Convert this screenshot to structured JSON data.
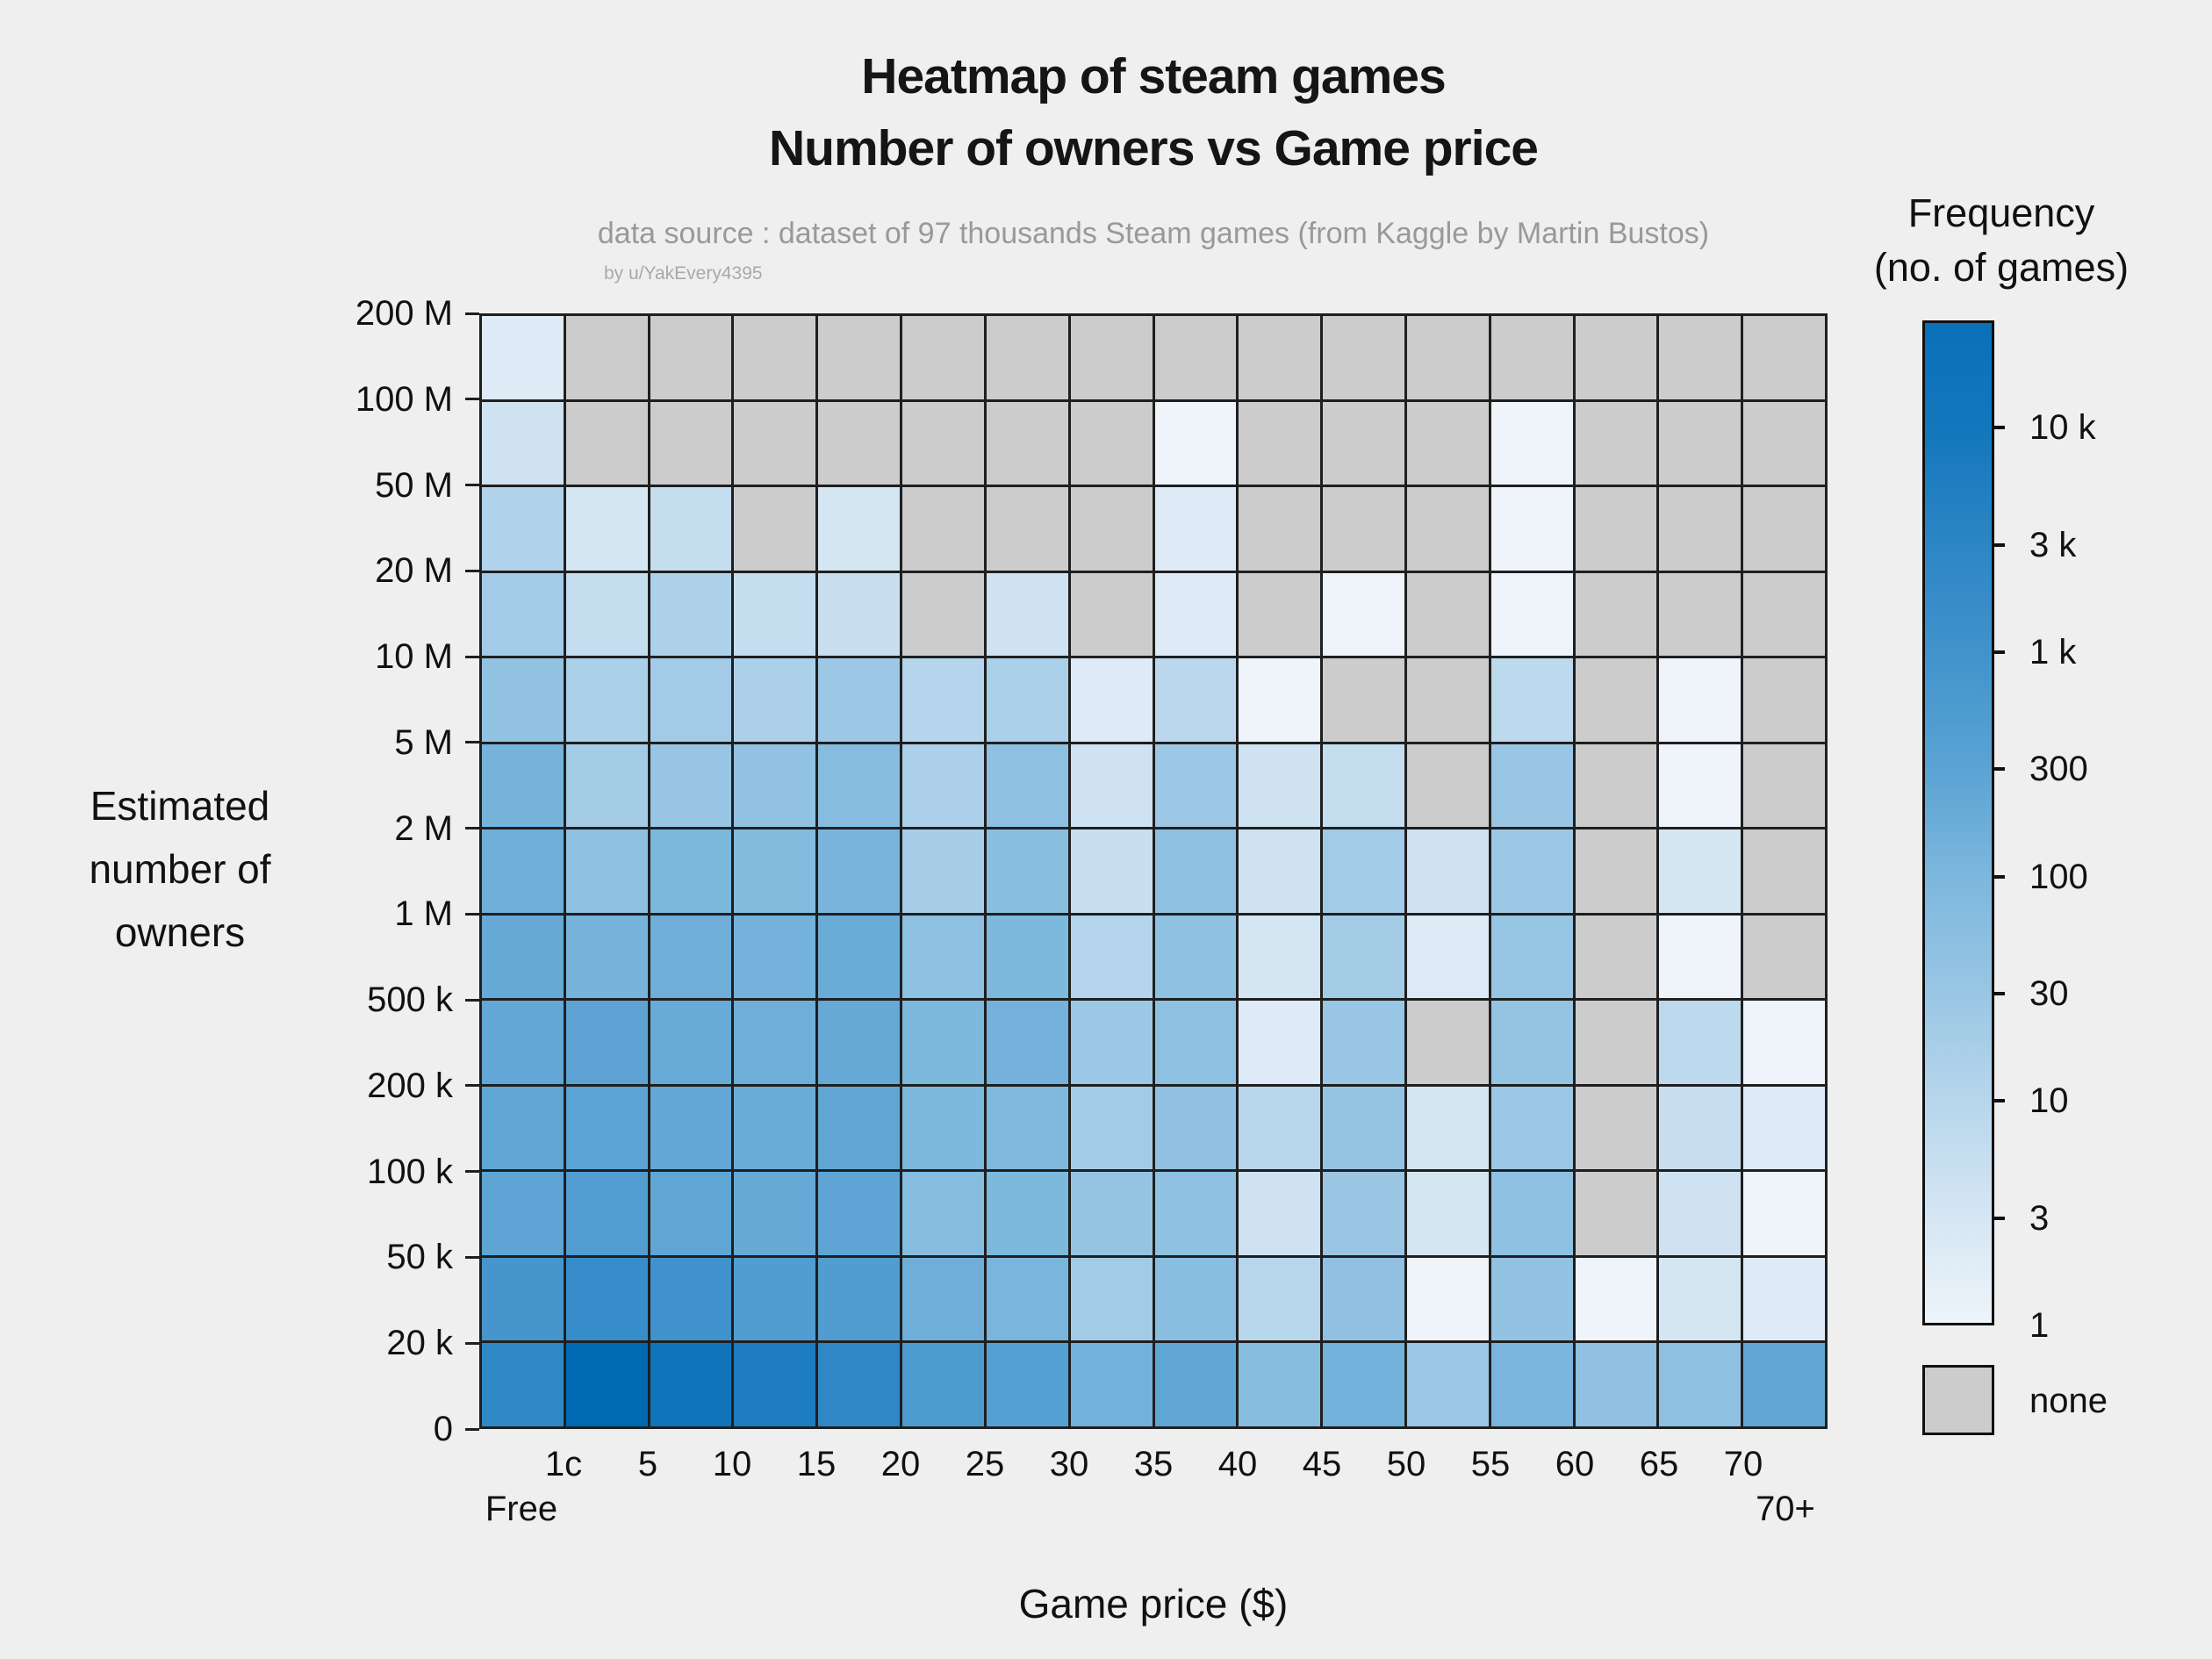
{
  "header": {
    "title_line1": "Heatmap of steam games",
    "title_line2": "Number of owners vs Game price",
    "subtitle": "data source : dataset of 97 thousands Steam games (from Kaggle by Martin Bustos)",
    "credit": "by u/YakEvery4395"
  },
  "axes": {
    "x_title": "Game price ($)",
    "y_title_lines": [
      "Estimated",
      "number of",
      "owners"
    ]
  },
  "chart_data": {
    "type": "heatmap",
    "title": "Heatmap of steam games — Number of owners vs Game price",
    "xlabel": "Game price ($)",
    "ylabel": "Estimated number of owners",
    "x_boundary_tick_labels": [
      "1c",
      "5",
      "10",
      "15",
      "20",
      "25",
      "30",
      "35",
      "40",
      "45",
      "50",
      "55",
      "60",
      "65",
      "70"
    ],
    "x_edge_labels": {
      "left": "Free",
      "right": "70+"
    },
    "y_boundary_tick_labels": [
      "200 M",
      "100 M",
      "50 M",
      "20 M",
      "10 M",
      "5 M",
      "2 M",
      "1 M",
      "500 k",
      "200 k",
      "100 k",
      "50 k",
      "20 k",
      "0"
    ],
    "price_bins_left_to_right": [
      "Free",
      "1c-5",
      "5-10",
      "10-15",
      "15-20",
      "20-25",
      "25-30",
      "30-35",
      "35-40",
      "40-45",
      "45-50",
      "50-55",
      "55-60",
      "60-65",
      "65-70",
      "70+"
    ],
    "owner_bands_top_to_bottom": [
      "100 M - 200 M",
      "50 M - 100 M",
      "20 M - 50 M",
      "10 M - 20 M",
      "5 M - 10 M",
      "2 M - 5 M",
      "1 M - 2 M",
      "500 k - 1 M",
      "200 k - 500 k",
      "100 k - 200 k",
      "50 k - 100 k",
      "20 k - 50 k",
      "0 - 20 k"
    ],
    "frequency_grid": [
      [
        2,
        null,
        null,
        null,
        null,
        null,
        null,
        null,
        null,
        null,
        null,
        null,
        null,
        null,
        null,
        null
      ],
      [
        4,
        null,
        null,
        null,
        null,
        null,
        null,
        null,
        1,
        null,
        null,
        null,
        1,
        null,
        null,
        null
      ],
      [
        13,
        3,
        6,
        null,
        3,
        null,
        null,
        null,
        2,
        null,
        null,
        null,
        1,
        null,
        null,
        null
      ],
      [
        21,
        6,
        14,
        6,
        5,
        null,
        4,
        null,
        2,
        null,
        1,
        null,
        1,
        null,
        null,
        null
      ],
      [
        38,
        16,
        21,
        15,
        26,
        11,
        16,
        2,
        9,
        1,
        null,
        null,
        8,
        null,
        1,
        null
      ],
      [
        120,
        20,
        33,
        40,
        65,
        15,
        48,
        4,
        27,
        4,
        6,
        null,
        30,
        null,
        1,
        null
      ],
      [
        160,
        48,
        95,
        75,
        115,
        18,
        55,
        5,
        48,
        4,
        22,
        4,
        26,
        null,
        3,
        null
      ],
      [
        210,
        120,
        160,
        130,
        180,
        50,
        95,
        11,
        45,
        3,
        20,
        2,
        32,
        null,
        1,
        null
      ],
      [
        240,
        285,
        190,
        160,
        210,
        95,
        130,
        27,
        50,
        2,
        30,
        null,
        36,
        null,
        8,
        1
      ],
      [
        250,
        300,
        230,
        180,
        255,
        95,
        85,
        21,
        44,
        10,
        35,
        3,
        27,
        null,
        5,
        2
      ],
      [
        275,
        460,
        260,
        210,
        270,
        65,
        95,
        36,
        46,
        4,
        29,
        3,
        45,
        null,
        4,
        1
      ],
      [
        800,
        1700,
        1100,
        480,
        480,
        160,
        110,
        22,
        58,
        10,
        44,
        1,
        38,
        1,
        3,
        2
      ],
      [
        2700,
        35000,
        15000,
        6500,
        2700,
        560,
        390,
        140,
        260,
        60,
        140,
        27,
        110,
        44,
        48,
        250
      ]
    ],
    "color_scale": {
      "stops": [
        {
          "v": 1,
          "c": "#eef4fa"
        },
        {
          "v": 3,
          "c": "#d5e6f3"
        },
        {
          "v": 10,
          "c": "#b7d6ec"
        },
        {
          "v": 30,
          "c": "#99c6e4"
        },
        {
          "v": 100,
          "c": "#7cb7dd"
        },
        {
          "v": 300,
          "c": "#5ba3d4"
        },
        {
          "v": 1000,
          "c": "#4193cc"
        },
        {
          "v": 3000,
          "c": "#2d86c5"
        },
        {
          "v": 10000,
          "c": "#1377bc"
        },
        {
          "v": 30000,
          "c": "#0a70b8"
        }
      ],
      "over_color": "#0069b4",
      "none_color": "#cccccc",
      "gridline_color": "#1f1f1f"
    },
    "legend": {
      "title_line1": "Frequency",
      "title_line2": "(no. of games)",
      "tick_labels": [
        "10 k",
        "3 k",
        "1 k",
        "300",
        "100",
        "30",
        "10",
        "3",
        "1"
      ],
      "tick_values": [
        10000,
        3000,
        1000,
        300,
        100,
        30,
        10,
        3,
        1
      ],
      "none_label": "none"
    }
  }
}
